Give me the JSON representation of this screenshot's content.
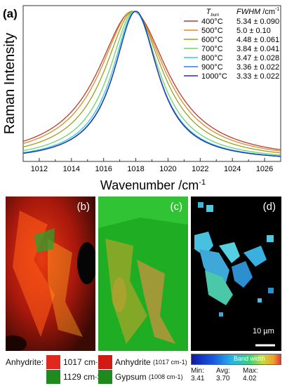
{
  "chart_data": {
    "type": "line",
    "panel_label": "(a)",
    "xlabel": "Wavenumber /cm",
    "xlabel_sup": "-1",
    "ylabel": "Raman Intensity",
    "xlim": [
      1011,
      1027
    ],
    "x_ticks": [
      1012,
      1014,
      1016,
      1018,
      1020,
      1022,
      1024,
      1026
    ],
    "legend_header_t": "T",
    "legend_header_t_sub": "burn",
    "legend_header_fwhm": "FWHM",
    "legend_header_unit": " /cm",
    "legend_header_unit_sup": "-1",
    "series": [
      {
        "name": "400°C",
        "fwhm": "5.34 ± 0.090",
        "center": 1017.8,
        "width": 5.34,
        "color": "#c0392b"
      },
      {
        "name": "500°C",
        "fwhm": "5.0  ± 0.10",
        "center": 1017.8,
        "width": 5.0,
        "color": "#d98c2e"
      },
      {
        "name": "600°C",
        "fwhm": "4.48 ± 0.061",
        "center": 1017.85,
        "width": 4.48,
        "color": "#9aa01e"
      },
      {
        "name": "700°C",
        "fwhm": "3.84 ± 0.041",
        "center": 1017.9,
        "width": 3.84,
        "color": "#6fd36a"
      },
      {
        "name": "800°C",
        "fwhm": "3.47 ± 0.028",
        "center": 1017.95,
        "width": 3.47,
        "color": "#3bc7e0"
      },
      {
        "name": "900°C",
        "fwhm": "3.36 ± 0.022",
        "center": 1018.0,
        "width": 3.36,
        "color": "#2f7fd8"
      },
      {
        "name": "1000°C",
        "fwhm": "3.33 ± 0.022",
        "center": 1018.0,
        "width": 3.33,
        "color": "#2233b0"
      }
    ]
  },
  "maps": {
    "b_label": "(b)",
    "c_label": "(c)",
    "d_label": "(d)",
    "scale_bar": "10 µm",
    "colorbar_text": "Band width",
    "stats": {
      "min_label": "Min:",
      "min_value": "3.41",
      "avg_label": "Avg:",
      "avg_value": "3.70",
      "max_label": "Max:",
      "max_value": "4.02"
    }
  },
  "legend_bottom": {
    "anhydrite_label": "Anhydrite:",
    "red_1017": "1017 cm",
    "green_1129": "1129 cm",
    "unit_sup": "-1",
    "anhydrite_item": "Anhydrite",
    "anhydrite_item_paren": "(1017 cm",
    "gypsum_item": "Gypsum",
    "gypsum_item_paren": "(1008 cm",
    "paren_close": ")",
    "red_color": "#e0281e",
    "green_color": "#1f8a1f"
  }
}
